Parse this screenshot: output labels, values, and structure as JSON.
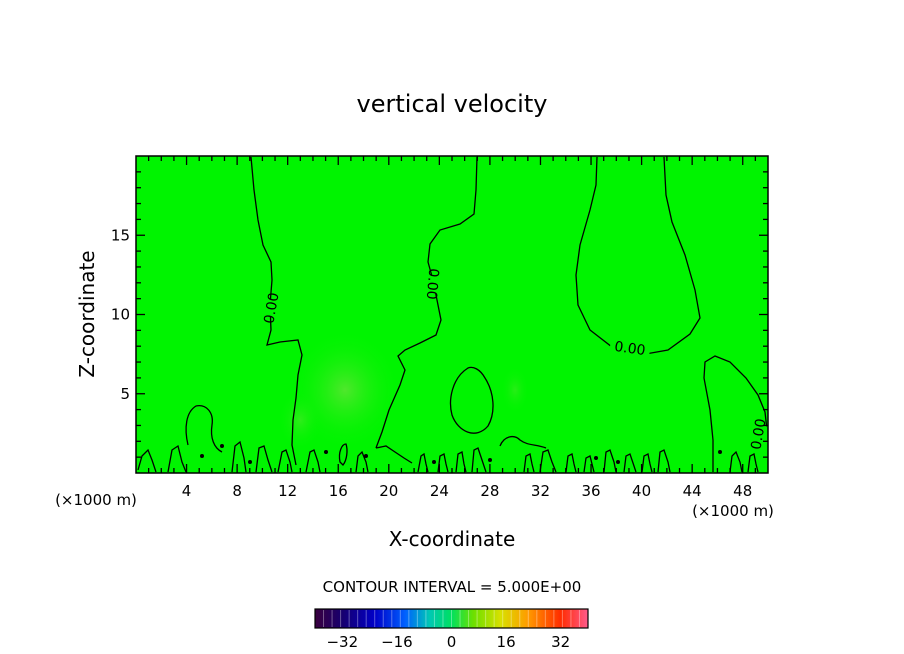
{
  "chart_data": {
    "type": "heatmap",
    "title": "vertical velocity",
    "xlabel": "X-coordinate",
    "ylabel": "Z-coordinate",
    "x_unit": "(×1000 m)",
    "y_unit": "(×1000 m)",
    "xlim": [
      0,
      50
    ],
    "ylim": [
      0,
      20
    ],
    "x_ticks": [
      4,
      8,
      12,
      16,
      20,
      24,
      28,
      32,
      36,
      40,
      44,
      48
    ],
    "y_ticks": [
      5,
      10,
      15
    ],
    "contour_interval_text": "CONTOUR INTERVAL = 5.000E+00",
    "contour_labels": [
      "0.00",
      "0.00",
      "0.00",
      "0.00"
    ],
    "colorbar": {
      "range": [
        -40,
        40
      ],
      "ticks": [
        -32,
        -16,
        0,
        16,
        32
      ]
    },
    "field_summary": "near-zero field (green) with weak positive perturbation around x=14-22, z=2-9",
    "colors": {
      "zero": "#00f400",
      "weak_positive": "#5fe02c"
    }
  }
}
